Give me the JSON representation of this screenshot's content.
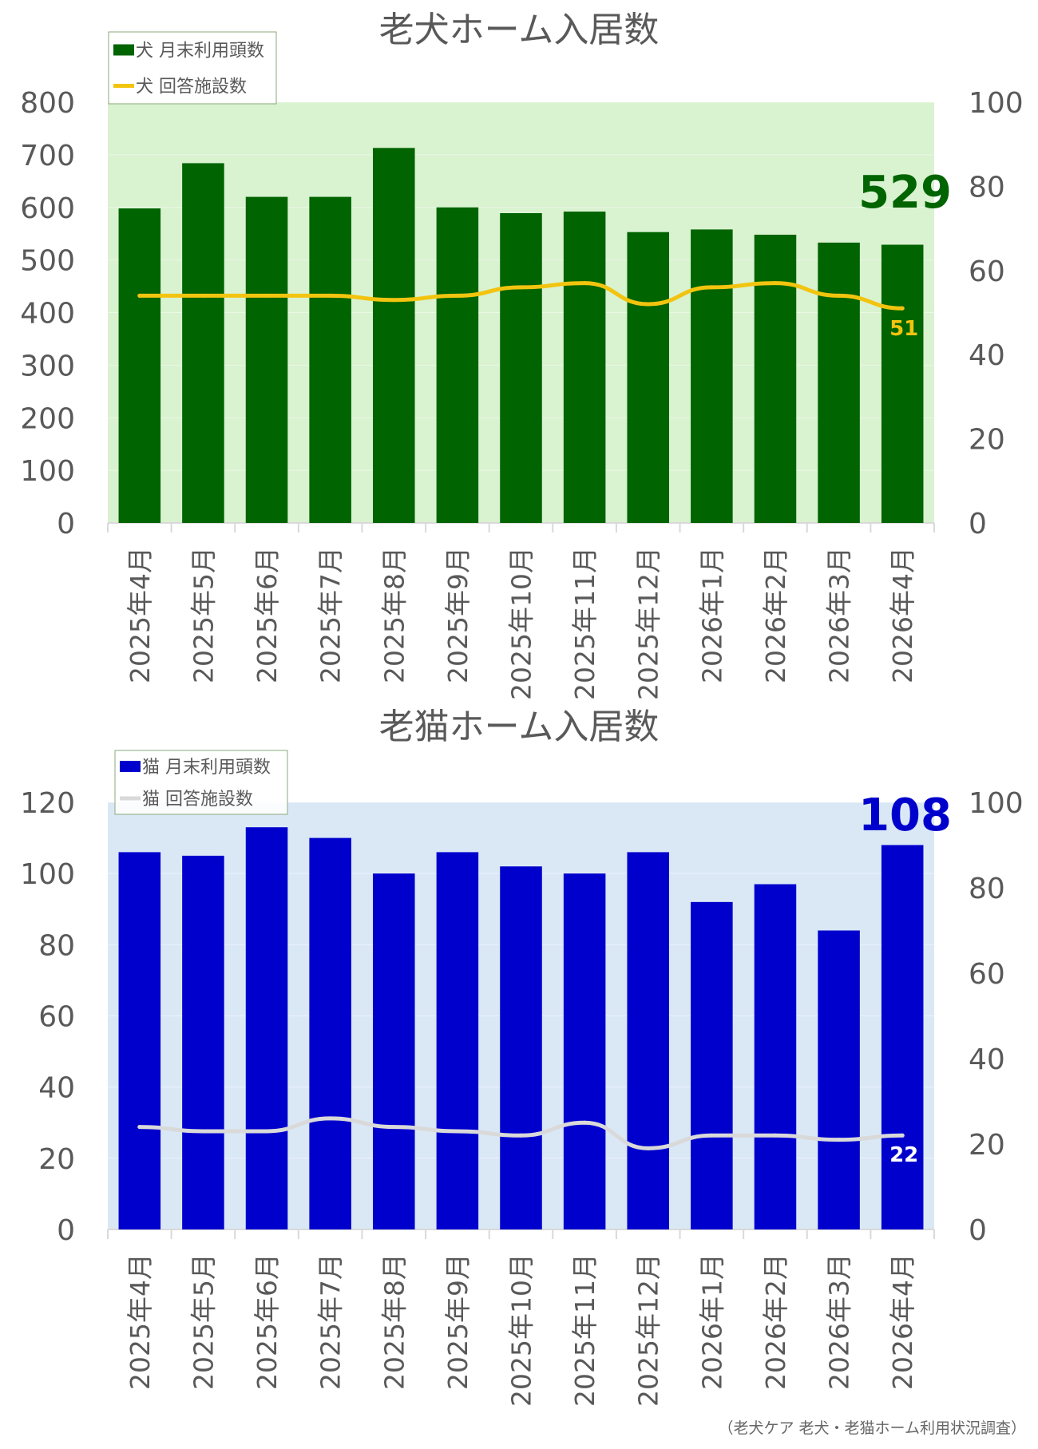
{
  "source_note": "（老犬ケア 老犬・老猫ホーム利用状況調査）",
  "chart_data": [
    {
      "type": "bar",
      "title": "老犬ホーム入居数",
      "categories": [
        "2025年4月",
        "2025年5月",
        "2025年6月",
        "2025年7月",
        "2025年8月",
        "2025年9月",
        "2025年10月",
        "2025年11月",
        "2025年12月",
        "2026年1月",
        "2026年2月",
        "2026年3月",
        "2026年4月"
      ],
      "series": [
        {
          "name": "犬 月末利用頭数",
          "chart": "bar",
          "axis": "left",
          "values": [
            598,
            684,
            620,
            620,
            713,
            600,
            589,
            592,
            553,
            558,
            548,
            533,
            529
          ]
        },
        {
          "name": "犬 回答施設数",
          "chart": "line",
          "axis": "right",
          "values": [
            54,
            54,
            54,
            54,
            53,
            54,
            56,
            57,
            52,
            56,
            57,
            54,
            51
          ]
        }
      ],
      "ylim_left": [
        0,
        800
      ],
      "ylim_right": [
        0,
        100
      ],
      "yticks_left": [
        "0",
        "100",
        "200",
        "300",
        "400",
        "500",
        "600",
        "700",
        "800"
      ],
      "yticks_right": [
        "0",
        "20",
        "40",
        "60",
        "80",
        "100"
      ],
      "callouts": {
        "bar_last": "529",
        "line_last": "51"
      },
      "legend_position": "top-left",
      "colors": {
        "bar": "#006400",
        "line": "#f2c40f",
        "plot_bg": "#d9f2d0",
        "callout_bar": "#006400",
        "callout_line": "#f2c40f"
      }
    },
    {
      "type": "bar",
      "title": "老猫ホーム入居数",
      "categories": [
        "2025年4月",
        "2025年5月",
        "2025年6月",
        "2025年7月",
        "2025年8月",
        "2025年9月",
        "2025年10月",
        "2025年11月",
        "2025年12月",
        "2026年1月",
        "2026年2月",
        "2026年3月",
        "2026年4月"
      ],
      "series": [
        {
          "name": "猫 月末利用頭数",
          "chart": "bar",
          "axis": "left",
          "values": [
            106,
            105,
            113,
            110,
            100,
            106,
            102,
            100,
            106,
            92,
            97,
            84,
            108
          ]
        },
        {
          "name": "猫 回答施設数",
          "chart": "line",
          "axis": "right",
          "values": [
            24,
            23,
            23,
            26,
            24,
            23,
            22,
            25,
            19,
            22,
            22,
            21,
            22
          ]
        }
      ],
      "ylim_left": [
        0,
        120
      ],
      "ylim_right": [
        0,
        100
      ],
      "yticks_left": [
        "0",
        "20",
        "40",
        "60",
        "80",
        "100",
        "120"
      ],
      "yticks_right": [
        "0",
        "20",
        "40",
        "60",
        "80",
        "100"
      ],
      "callouts": {
        "bar_last": "108",
        "line_last": "22"
      },
      "legend_position": "top-left",
      "colors": {
        "bar": "#0000cd",
        "line": "#d9d9d9",
        "plot_bg": "#dae8f6",
        "callout_bar": "#0000cd",
        "callout_line": "#ffffff"
      }
    }
  ]
}
